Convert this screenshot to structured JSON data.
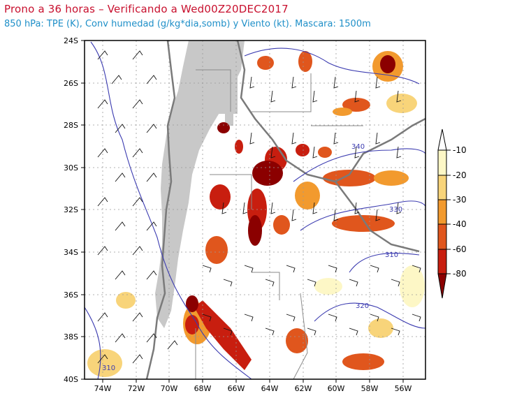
{
  "header": {
    "title": "Prono a 36 horas – Verificando a Wed00Z20DEC2017",
    "subtitle": "850 hPa: TPE (K), Conv humedad (g/kg*dia,somb) y Viento (kt). Mascara: 1500m"
  },
  "axes": {
    "lat_labels": [
      "24S",
      "26S",
      "28S",
      "30S",
      "32S",
      "34S",
      "36S",
      "38S",
      "40S"
    ],
    "lon_labels": [
      "74W",
      "72W",
      "70W",
      "68W",
      "66W",
      "64W",
      "62W",
      "60W",
      "58W",
      "56W"
    ]
  },
  "colorbar": {
    "levels": [
      "-10",
      "-20",
      "-30",
      "-40",
      "-60",
      "-80"
    ],
    "colors": [
      "#fdf7c6",
      "#f8d47a",
      "#f29a2e",
      "#e0561d",
      "#c81e0f",
      "#8b0000"
    ]
  },
  "contour_labels": [
    "340",
    "330",
    "310",
    "320",
    "310"
  ],
  "colors": {
    "title": "#c8102e",
    "subtitle": "#1e8fc8",
    "contour": "#3b3bb0",
    "mask": "#c8c8c8",
    "borders": "#7a7a7a"
  }
}
